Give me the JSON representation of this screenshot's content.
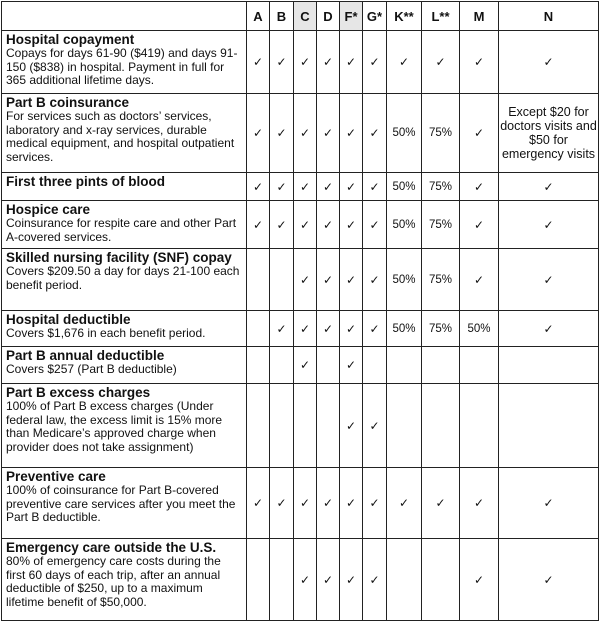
{
  "columns": [
    "",
    "A",
    "B",
    "C",
    "D",
    "F*",
    "G*",
    "K**",
    "L**",
    "M",
    "N"
  ],
  "highlighted_columns": [
    "C",
    "F*"
  ],
  "colors": {
    "header_highlight": "#e6e6e6",
    "border": "#222222",
    "underline": "#3060d0"
  },
  "check_icon": "check-mark-icon",
  "rows": [
    {
      "title": "Hospital copayment",
      "desc": "Copays for days 61-90 ($419) and days 91-150 ($838) in hospital. Payment in full for 365 additional lifetime days.",
      "cells": [
        "✓",
        "✓",
        "✓",
        "✓",
        "✓",
        "✓",
        "✓",
        "✓",
        "✓",
        "✓"
      ]
    },
    {
      "title": "Part B coinsurance",
      "desc": "For services such as doctors’ services, laboratory and x-ray services, durable medical equipment, and hospital outpatient services.",
      "cells": [
        "✓",
        "✓",
        "✓",
        "✓",
        "✓",
        "✓",
        "50%",
        "75%",
        "✓",
        "Except $20 for doctors visits and $50 for emergency visits"
      ]
    },
    {
      "title": "First three pints of blood",
      "desc": "",
      "cells": [
        "✓",
        "✓",
        "✓",
        "✓",
        "✓",
        "✓",
        "50%",
        "75%",
        "✓",
        "✓"
      ]
    },
    {
      "title": "Hospice care",
      "desc": "Coinsurance for respite care and other Part A-covered services.",
      "cells": [
        "✓",
        "✓",
        "✓",
        "✓",
        "✓",
        "✓",
        "50%",
        "75%",
        "✓",
        "✓"
      ]
    },
    {
      "title": "Skilled nursing facility (SNF) copay",
      "desc": "Covers $209.50 a day for days 21-100 each benefit period.",
      "cells": [
        "",
        "",
        "✓",
        "✓",
        "✓",
        "✓",
        "50%",
        "75%",
        "✓",
        "✓"
      ]
    },
    {
      "title": "Hospital deductible",
      "desc": "Covers $1,676 in each benefit period.",
      "cells": [
        "",
        "✓",
        "✓",
        "✓",
        "✓",
        "✓",
        "50%",
        "75%",
        "50%",
        "✓"
      ]
    },
    {
      "title": "Part B annual deductible",
      "desc": "Covers $257 (Part B deductible)",
      "cells": [
        "",
        "",
        "✓",
        "",
        "✓",
        "",
        "",
        "",
        "",
        ""
      ]
    },
    {
      "title": "Part B excess charges",
      "desc": "100% of Part B excess charges (Under federal law, the excess limit is 15% more than Medicare’s approved charge when provider does not take assignment)",
      "cells": [
        "",
        "",
        "",
        "",
        "✓",
        "✓",
        "",
        "",
        "",
        ""
      ]
    },
    {
      "title": "Preventive care",
      "desc": "100% of coinsurance for Part B-covered preventive care services after you meet the Part B deductible.",
      "cells": [
        "✓",
        "✓",
        "✓",
        "✓",
        "✓",
        "✓",
        "✓",
        "✓",
        "✓",
        "✓"
      ]
    },
    {
      "title": "Emergency care outside the U.S.",
      "desc": "80% of emergency care costs during the first 60 days of each trip, after an annual deductible of $250, up to a maximum lifetime benefit of $50,000.",
      "cells": [
        "",
        "",
        "✓",
        "✓",
        "✓",
        "✓",
        "",
        "",
        "✓",
        "✓"
      ]
    }
  ]
}
